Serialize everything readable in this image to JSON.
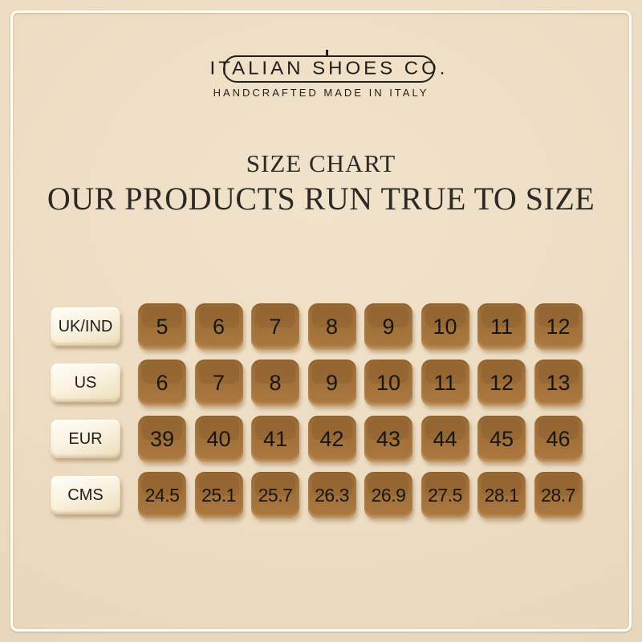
{
  "brand": {
    "name": "ITALIAN SHOES CO.",
    "tagline": "HANDCRAFTED MADE IN ITALY"
  },
  "heading": {
    "title": "SIZE CHART",
    "subtitle": "OUR PRODUCTS RUN TRUE TO SIZE"
  },
  "chart_data": {
    "type": "table",
    "title": "SIZE CHART",
    "subtitle": "OUR PRODUCTS RUN TRUE TO SIZE",
    "row_headers": [
      "UK/IND",
      "US",
      "EUR",
      "CMS"
    ],
    "rows": [
      {
        "label": "UK/IND",
        "values": [
          "5",
          "6",
          "7",
          "8",
          "9",
          "10",
          "11",
          "12"
        ]
      },
      {
        "label": "US",
        "values": [
          "6",
          "7",
          "8",
          "9",
          "10",
          "11",
          "12",
          "13"
        ]
      },
      {
        "label": "EUR",
        "values": [
          "39",
          "40",
          "41",
          "42",
          "43",
          "44",
          "45",
          "46"
        ]
      },
      {
        "label": "CMS",
        "values": [
          "24.5",
          "25.1",
          "25.7",
          "26.3",
          "26.9",
          "27.5",
          "28.1",
          "28.7"
        ]
      }
    ]
  },
  "colors": {
    "background": "#ecdbc1",
    "frame_line": "#fdfcf6",
    "cell_brown": "#a3713a",
    "label_cream": "#fbf3e1",
    "text_dark": "#1b1b1b"
  }
}
